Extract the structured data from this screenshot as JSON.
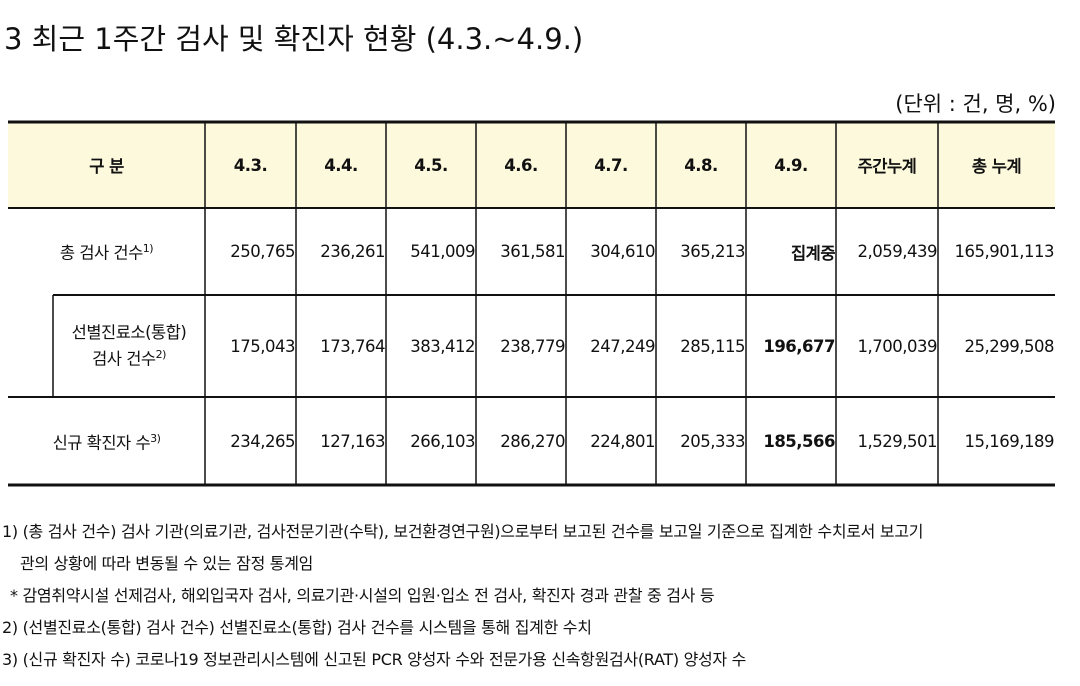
{
  "header": {
    "title": "3  최근 1주간 검사 및 확진자 현황 (4.3.~4.9.)",
    "unit": "(단위 : 건, 명, %)"
  },
  "table": {
    "columns": [
      "구 분",
      "4.3.",
      "4.4.",
      "4.5.",
      "4.6.",
      "4.7.",
      "4.8.",
      "4.9.",
      "주간누계",
      "총 누계"
    ],
    "rows": [
      {
        "label": [
          "총 검사 건수"
        ],
        "note": "1)",
        "cells": [
          "250,765",
          "236,261",
          "541,009",
          "361,581",
          "304,610",
          "365,213",
          "집계중",
          "2,059,439",
          "165,901,113"
        ]
      },
      {
        "label": [
          "선별진료소(통합)",
          "검사 건수"
        ],
        "note": "2)",
        "cells": [
          "175,043",
          "173,764",
          "383,412",
          "238,779",
          "247,249",
          "285,115",
          "196,677",
          "1,700,039",
          "25,299,508"
        ]
      },
      {
        "label": [
          "신규 확진자 수"
        ],
        "note": "3)",
        "cells": [
          "234,265",
          "127,163",
          "266,103",
          "286,270",
          "224,801",
          "205,333",
          "185,566",
          "1,529,501",
          "15,169,189"
        ]
      }
    ]
  },
  "notes": [
    "1) (총 검사 건수) 검사 기관(의료기관, 검사전문기관(수탁), 보건환경연구원)으로부터 보고된 건수를 보고일 기준으로 집계한 수치로서 보고기",
    "관의 상황에 따라 변동될 수 있는 잠정 통계임",
    "* 감염취약시설 선제검사, 해외입국자 검사, 의료기관·시설의 입원·입소 전 검사, 확진자 경과 관찰 중 검사 등",
    "2) (선별진료소(통합) 검사 건수) 선별진료소(통합) 검사 건수를 시스템을 통해 집계한 수치",
    "3) (신규 확진자 수) 코로나19 정보관리시스템에 신고된 PCR 양성자 수와 전문가용 신속항원검사(RAT) 양성자 수"
  ]
}
